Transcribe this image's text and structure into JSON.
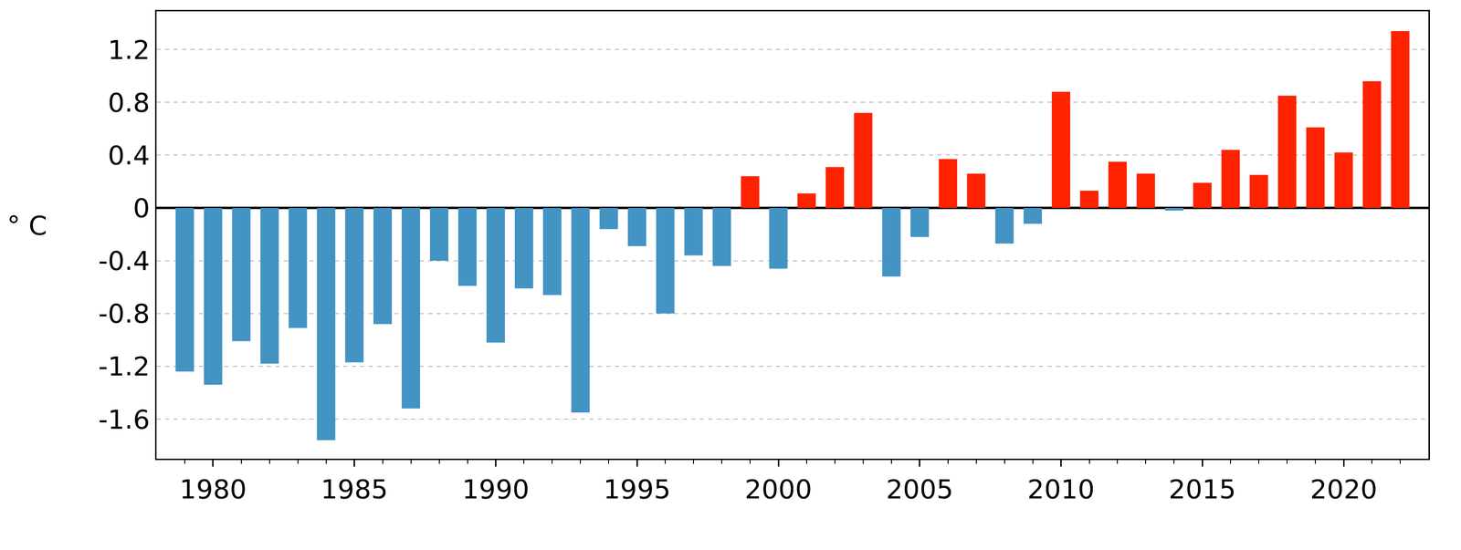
{
  "chart_data": {
    "type": "bar",
    "ylabel": "° C",
    "x": [
      1979,
      1980,
      1981,
      1982,
      1983,
      1984,
      1985,
      1986,
      1987,
      1988,
      1989,
      1990,
      1991,
      1992,
      1993,
      1994,
      1995,
      1996,
      1997,
      1998,
      1999,
      2000,
      2001,
      2002,
      2003,
      2004,
      2005,
      2006,
      2007,
      2008,
      2009,
      2010,
      2011,
      2012,
      2013,
      2014,
      2015,
      2016,
      2017,
      2018,
      2019,
      2020,
      2021,
      2022
    ],
    "values": [
      -1.24,
      -1.34,
      -1.01,
      -1.18,
      -0.91,
      -1.76,
      -1.17,
      -0.88,
      -1.52,
      -0.4,
      -0.59,
      -1.02,
      -0.61,
      -0.66,
      -1.55,
      -0.16,
      -0.29,
      -0.8,
      -0.36,
      -0.44,
      0.24,
      -0.46,
      0.11,
      0.31,
      0.72,
      -0.52,
      -0.22,
      0.37,
      0.26,
      -0.27,
      -0.12,
      0.88,
      0.13,
      0.35,
      0.26,
      -0.02,
      0.19,
      0.44,
      0.25,
      0.85,
      0.61,
      0.42,
      0.96,
      1.34
    ],
    "colors": [
      "#4393c3",
      "#4393c3",
      "#4393c3",
      "#4393c3",
      "#4393c3",
      "#4393c3",
      "#4393c3",
      "#4393c3",
      "#4393c3",
      "#4393c3",
      "#4393c3",
      "#4393c3",
      "#4393c3",
      "#4393c3",
      "#4393c3",
      "#4393c3",
      "#4393c3",
      "#4393c3",
      "#4393c3",
      "#4393c3",
      "#ff2200",
      "#4393c3",
      "#ff2200",
      "#ff2200",
      "#ff2200",
      "#4393c3",
      "#4393c3",
      "#ff2200",
      "#ff2200",
      "#4393c3",
      "#4393c3",
      "#ff2200",
      "#ff2200",
      "#ff2200",
      "#ff2200",
      "#4393c3",
      "#ff2200",
      "#ff2200",
      "#ff2200",
      "#ff2200",
      "#ff2200",
      "#ff2200",
      "#ff2200",
      "#ff2200"
    ],
    "xlim": [
      1978,
      2023
    ],
    "xticks": [
      1980,
      1985,
      1990,
      1995,
      2000,
      2005,
      2010,
      2015,
      2020
    ],
    "ylim": [
      -1.9,
      1.49
    ],
    "yticks": [
      -1.6,
      -1.2,
      -0.8,
      -0.4,
      0,
      0.4,
      0.8,
      1.2
    ],
    "grid": true
  }
}
